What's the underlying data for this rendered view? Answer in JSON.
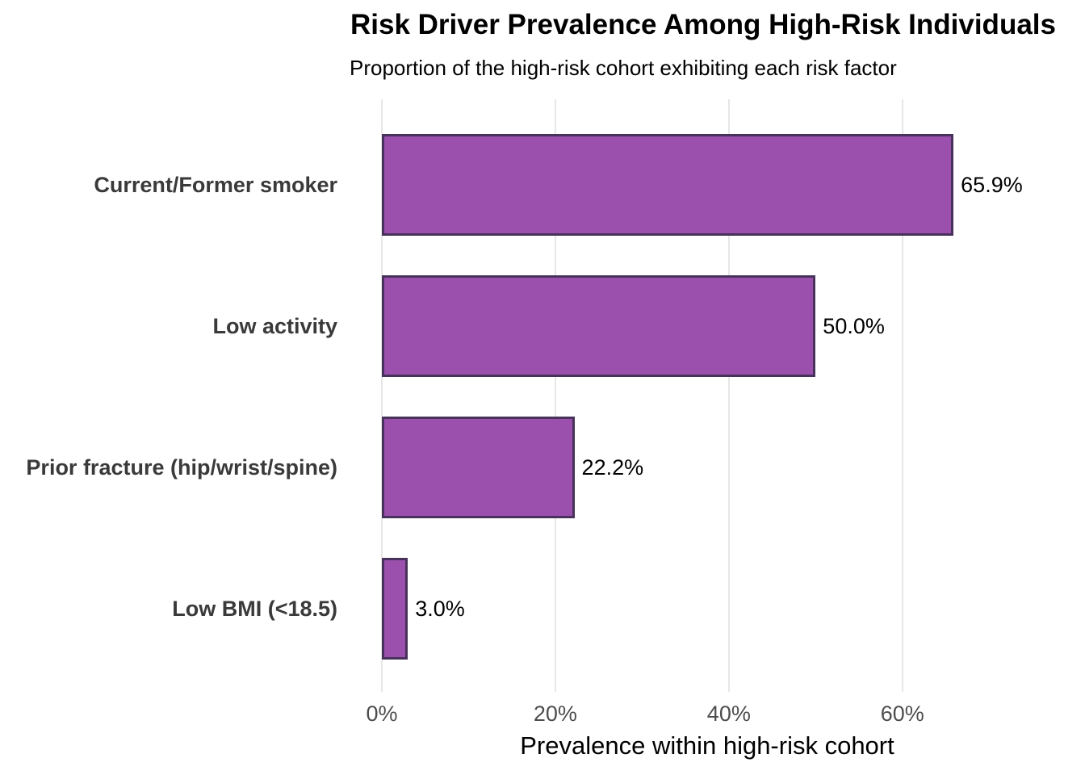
{
  "chart_data": {
    "type": "bar",
    "orientation": "horizontal",
    "title": "Risk Driver Prevalence Among High-Risk Individuals",
    "subtitle": "Proportion of the high-risk cohort exhibiting each risk factor",
    "xlabel": "Prevalence within high-risk cohort",
    "ylabel": "",
    "categories": [
      "Current/Former smoker",
      "Low activity",
      "Prior fracture (hip/wrist/spine)",
      "Low BMI (<18.5)"
    ],
    "values": [
      65.9,
      50.0,
      22.2,
      3.0
    ],
    "value_labels": [
      "65.9%",
      "50.0%",
      "22.2%",
      "3.0%"
    ],
    "x_ticks": [
      "0%",
      "20%",
      "40%",
      "60%"
    ],
    "x_tick_values": [
      0,
      20,
      40,
      60
    ],
    "xlim": [
      0,
      75.6
    ],
    "grid": "vertical-major-only",
    "legend": "none",
    "colors": {
      "bar_fill": "#9A50AC",
      "bar_border": "#48315A",
      "gridline": "#e7e7e7",
      "tick_label": "#4d4d4d",
      "category_label": "#3a3a3a",
      "text": "#000000",
      "background": "#ffffff"
    }
  }
}
